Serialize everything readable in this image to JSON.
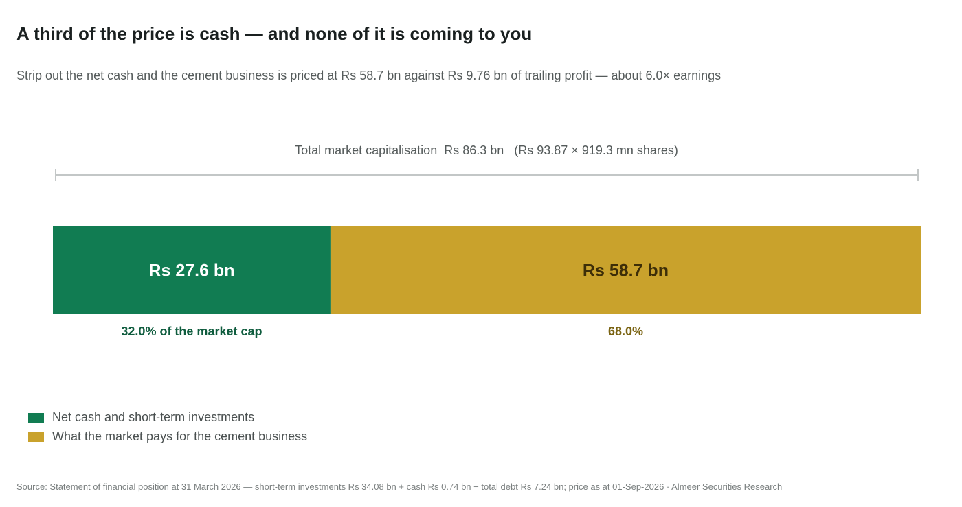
{
  "header": {
    "title": "A third of the price is cash — and none of it is coming to you",
    "subtitle": "Strip out the net cash and the cement business is priced at Rs 58.7 bn against Rs 9.76 bn of trailing profit — about 6.0× earnings"
  },
  "chart_data": {
    "type": "bar",
    "orientation": "horizontal-stacked",
    "total": 86.3,
    "total_label": "Total market capitalisation  Rs 86.3 bn   (Rs 93.87 × 919.3 mn shares)",
    "series": [
      {
        "name": "Net cash and short-term investments",
        "value": 27.6,
        "label": "Rs 27.6 bn",
        "share_label": "32.0% of the market cap",
        "color": "#117c52",
        "label_color": "#ffffff",
        "share_color": "#0f5c3e"
      },
      {
        "name": "What the market pays for the cement business",
        "value": 58.7,
        "label": "Rs 58.7 bn",
        "share_label": "68.0%",
        "color": "#c9a22c",
        "label_color": "#3d2e08",
        "share_color": "#7a6312"
      }
    ],
    "legend_position": "bottom-left",
    "grid": false
  },
  "footer": {
    "source": "Source: Statement of financial position at 31 March 2026 — short-term investments Rs 34.08 bn + cash Rs 0.74 bn − total debt Rs 7.24 bn; price as at 01-Sep-2026  ·  Almeer Securities Research"
  }
}
